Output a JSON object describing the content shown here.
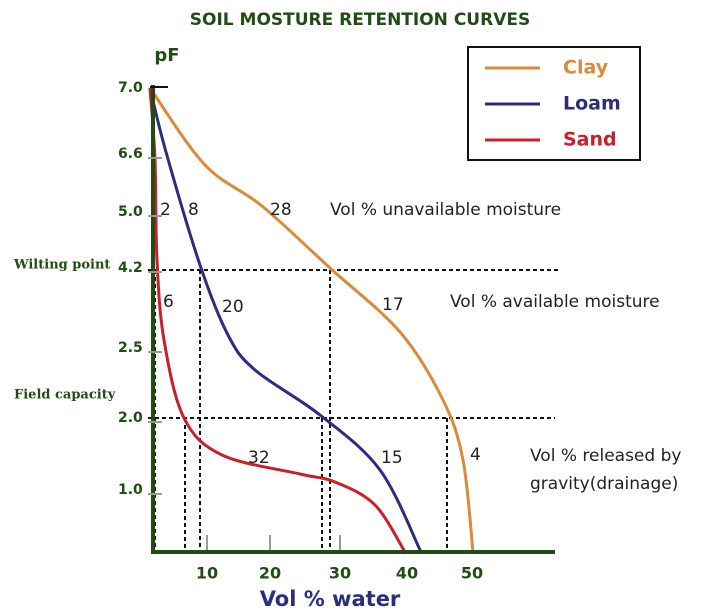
{
  "title": "SOIL MOSTURE RETENTION CURVES",
  "y_axis": {
    "label": "pF",
    "ticks": [
      "7.0",
      "6.6",
      "5.0",
      "4.2",
      "2.5",
      "2.0",
      "1.0"
    ]
  },
  "x_axis": {
    "label": "Vol % water",
    "ticks": [
      "10",
      "20",
      "30",
      "40",
      "50"
    ]
  },
  "legend": [
    "Clay",
    "Loam",
    "Sand"
  ],
  "markers": [
    "Wilting point",
    "Field capacity"
  ],
  "annotations": [
    "2",
    "8",
    "28",
    "Vol % unavailable moisture",
    "6",
    "20",
    "17",
    "Vol % available moisture",
    "32",
    "15",
    "4",
    "Vol % released by",
    "gravity(drainage)"
  ]
}
